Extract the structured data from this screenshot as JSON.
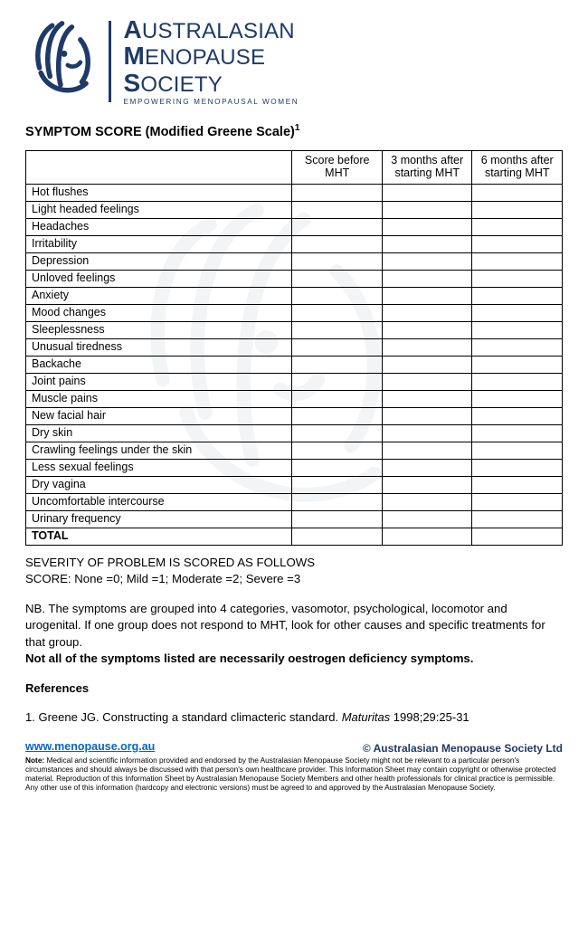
{
  "brand": {
    "color": "#1f3a67",
    "word1": "USTRALASIAN",
    "word1_cap": "A",
    "word2": "ENOPAUSE",
    "word2_cap": "M",
    "word3": "OCIETY",
    "word3_cap": "S",
    "tagline": "EMPOWERING MENOPAUSAL WOMEN"
  },
  "title": "SYMPTOM SCORE (Modified Greene Scale)",
  "title_ref": "1",
  "table": {
    "headers": [
      "",
      "Score before MHT",
      "3 months after starting MHT",
      "6 months after starting MHT"
    ],
    "rows": [
      "Hot flushes",
      "Light headed feelings",
      "Headaches",
      "Irritability",
      "Depression",
      "Unloved feelings",
      "Anxiety",
      "Mood changes",
      "Sleeplessness",
      "Unusual tiredness",
      "Backache",
      "Joint pains",
      "Muscle pains",
      "New facial hair",
      "Dry skin",
      "Crawling feelings under the skin",
      "Less sexual feelings",
      "Dry vagina",
      "Uncomfortable intercourse",
      "Urinary frequency"
    ],
    "total_label": "TOTAL"
  },
  "severity": {
    "heading": "SEVERITY OF PROBLEM IS SCORED AS FOLLOWS",
    "scoring": "SCORE: None =0; Mild =1; Moderate =2; Severe =3"
  },
  "nb": {
    "text": "NB. The symptoms are grouped into 4 categories, vasomotor, psychological, locomotor and urogenital. If one group does not respond to MHT, look for other causes and specific treatments for that group.",
    "bold": "Not all of the symptoms listed are necessarily oestrogen deficiency symptoms."
  },
  "references": {
    "heading": "References",
    "item": "1. Greene JG. Constructing a standard climacteric standard. ",
    "item_ital": "Maturitas",
    "item_tail": " 1998;29:25-31"
  },
  "website": "www.menopause.org.au",
  "disclaimer": {
    "label": "Note:",
    "text": " Medical and scientific information provided and endorsed by the Australasian Menopause Society might not be relevant to a particular person's circumstances and should always be discussed with that person's own healthcare provider. This Information Sheet may contain copyright or otherwise protected material. Reproduction of this Information Sheet by Australasian Menopause Society Members and other health professionals for clinical practice is permissible. Any other use of this information (hardcopy and electronic versions) must be agreed to and approved by the Australasian Menopause Society."
  },
  "copyright": "© Australasian Menopause Society Ltd"
}
